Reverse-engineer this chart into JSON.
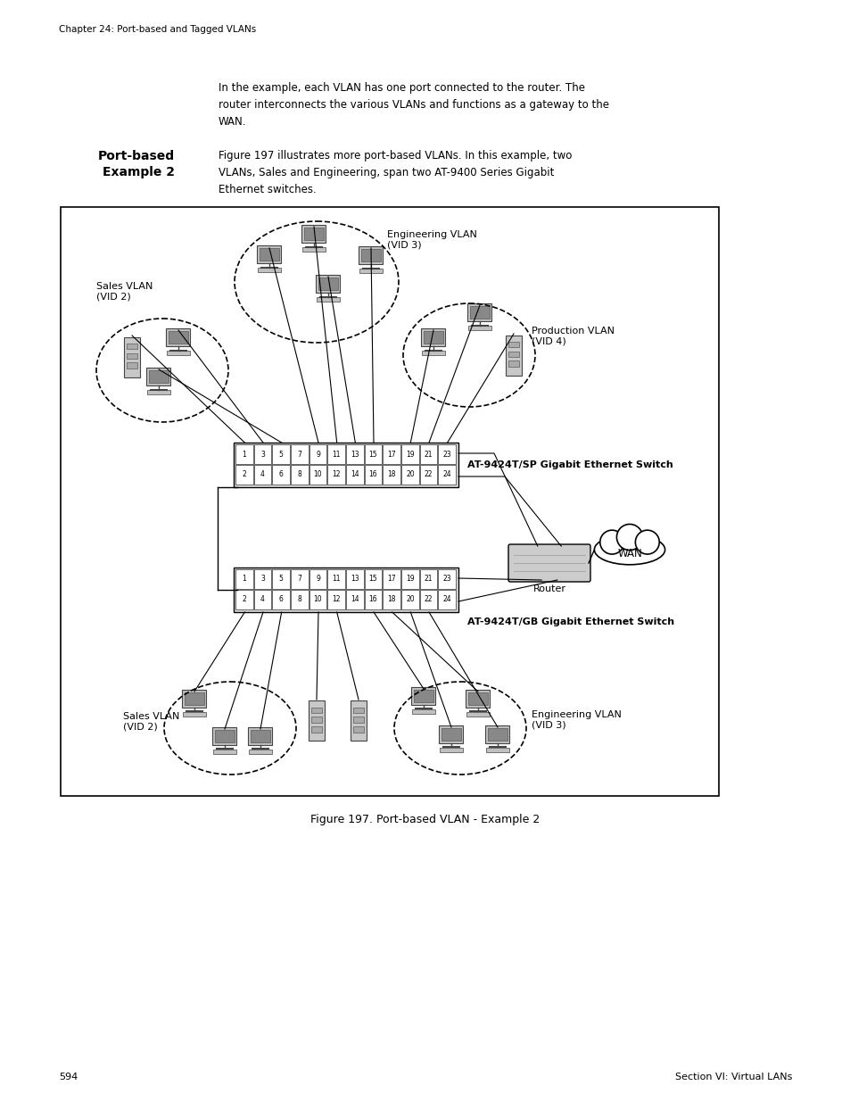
{
  "page_title": "Chapter 24: Port-based and Tagged VLANs",
  "sidebar_title_line1": "Port-based",
  "sidebar_title_line2": "Example 2",
  "intro_text": "In the example, each VLAN has one port connected to the router. The\nrouter interconnects the various VLANs and functions as a gateway to the\nWAN.",
  "sidebar_text": "Figure 197 illustrates more port-based VLANs. In this example, two\nVLANs, Sales and Engineering, span two AT-9400 Series Gigabit\nEthernet switches.",
  "figure_caption": "Figure 197. Port-based VLAN - Example 2",
  "page_number": "594",
  "section_label": "Section VI: Virtual LANs",
  "switch1_label": "AT-9424T/SP Gigabit Ethernet Switch",
  "switch2_label": "AT-9424T/GB Gigabit Ethernet Switch",
  "router_label": "Router",
  "wan_label": "WAN",
  "sales_vlan_top_label": "Sales VLAN\n(VID 2)",
  "engineering_vlan_top_label": "Engineering VLAN\n(VID 3)",
  "production_vlan_label": "Production VLAN\n(VID 4)",
  "sales_vlan_bottom_label": "Sales VLAN\n(VID 2)",
  "engineering_vlan_bottom_label": "Engineering VLAN\n(VID 3)",
  "switch_ports_odd": [
    "1",
    "3",
    "5",
    "7",
    "9",
    "11",
    "13",
    "15",
    "17",
    "19",
    "21",
    "23"
  ],
  "switch_ports_even": [
    "2",
    "4",
    "6",
    "8",
    "10",
    "12",
    "14",
    "16",
    "18",
    "20",
    "22",
    "24"
  ],
  "bg_color": "#ffffff",
  "box_color": "#ffffff",
  "box_border": "#000000",
  "text_color": "#000000",
  "diagram_bg": "#ffffff"
}
